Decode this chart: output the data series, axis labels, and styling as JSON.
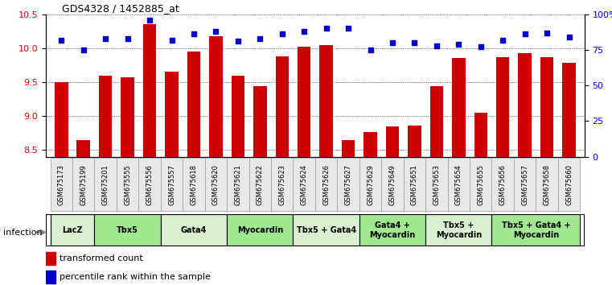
{
  "title": "GDS4328 / 1452885_at",
  "samples": [
    "GSM675173",
    "GSM675199",
    "GSM675201",
    "GSM675555",
    "GSM675556",
    "GSM675557",
    "GSM675618",
    "GSM675620",
    "GSM675621",
    "GSM675622",
    "GSM675623",
    "GSM675624",
    "GSM675626",
    "GSM675627",
    "GSM675629",
    "GSM675649",
    "GSM675651",
    "GSM675653",
    "GSM675654",
    "GSM675655",
    "GSM675656",
    "GSM675657",
    "GSM675658",
    "GSM675660"
  ],
  "bar_values": [
    9.5,
    8.65,
    9.6,
    9.57,
    10.35,
    9.65,
    9.95,
    10.18,
    9.6,
    9.44,
    9.88,
    10.02,
    10.05,
    8.65,
    8.76,
    8.85,
    8.86,
    9.44,
    9.85,
    9.05,
    9.87,
    9.93,
    9.87,
    9.78
  ],
  "scatter_values": [
    82,
    75,
    83,
    83,
    96,
    82,
    86,
    88,
    81,
    83,
    86,
    88,
    90,
    90,
    75,
    80,
    80,
    78,
    79,
    77,
    82,
    86,
    87,
    84
  ],
  "ylim_left": [
    8.4,
    10.5
  ],
  "ylim_right": [
    0,
    100
  ],
  "yticks_left": [
    8.5,
    9.0,
    9.5,
    10.0,
    10.5
  ],
  "yticks_right": [
    0,
    25,
    50,
    75,
    100
  ],
  "ytick_labels_right": [
    "0",
    "25",
    "50",
    "75",
    "100%"
  ],
  "groups": [
    {
      "label": "LacZ",
      "start": 0,
      "end": 1,
      "color": "#d8f0d0"
    },
    {
      "label": "Tbx5",
      "start": 2,
      "end": 4,
      "color": "#a0e890"
    },
    {
      "label": "Gata4",
      "start": 5,
      "end": 7,
      "color": "#d8f0d0"
    },
    {
      "label": "Myocardin",
      "start": 8,
      "end": 10,
      "color": "#a0e890"
    },
    {
      "label": "Tbx5 + Gata4",
      "start": 11,
      "end": 13,
      "color": "#d8f0d0"
    },
    {
      "label": "Gata4 +\nMyocardin",
      "start": 14,
      "end": 16,
      "color": "#a0e890"
    },
    {
      "label": "Tbx5 +\nMyocardin",
      "start": 17,
      "end": 19,
      "color": "#d8f0d0"
    },
    {
      "label": "Tbx5 + Gata4 +\nMyocardin",
      "start": 20,
      "end": 23,
      "color": "#a0e890"
    }
  ],
  "bar_color": "#cc0000",
  "scatter_color": "#0000cc",
  "xlabel_color": "red",
  "ylabel_right_color": "blue",
  "infection_label": "infection",
  "legend_bar_label": "transformed count",
  "legend_scatter_label": "percentile rank within the sample"
}
